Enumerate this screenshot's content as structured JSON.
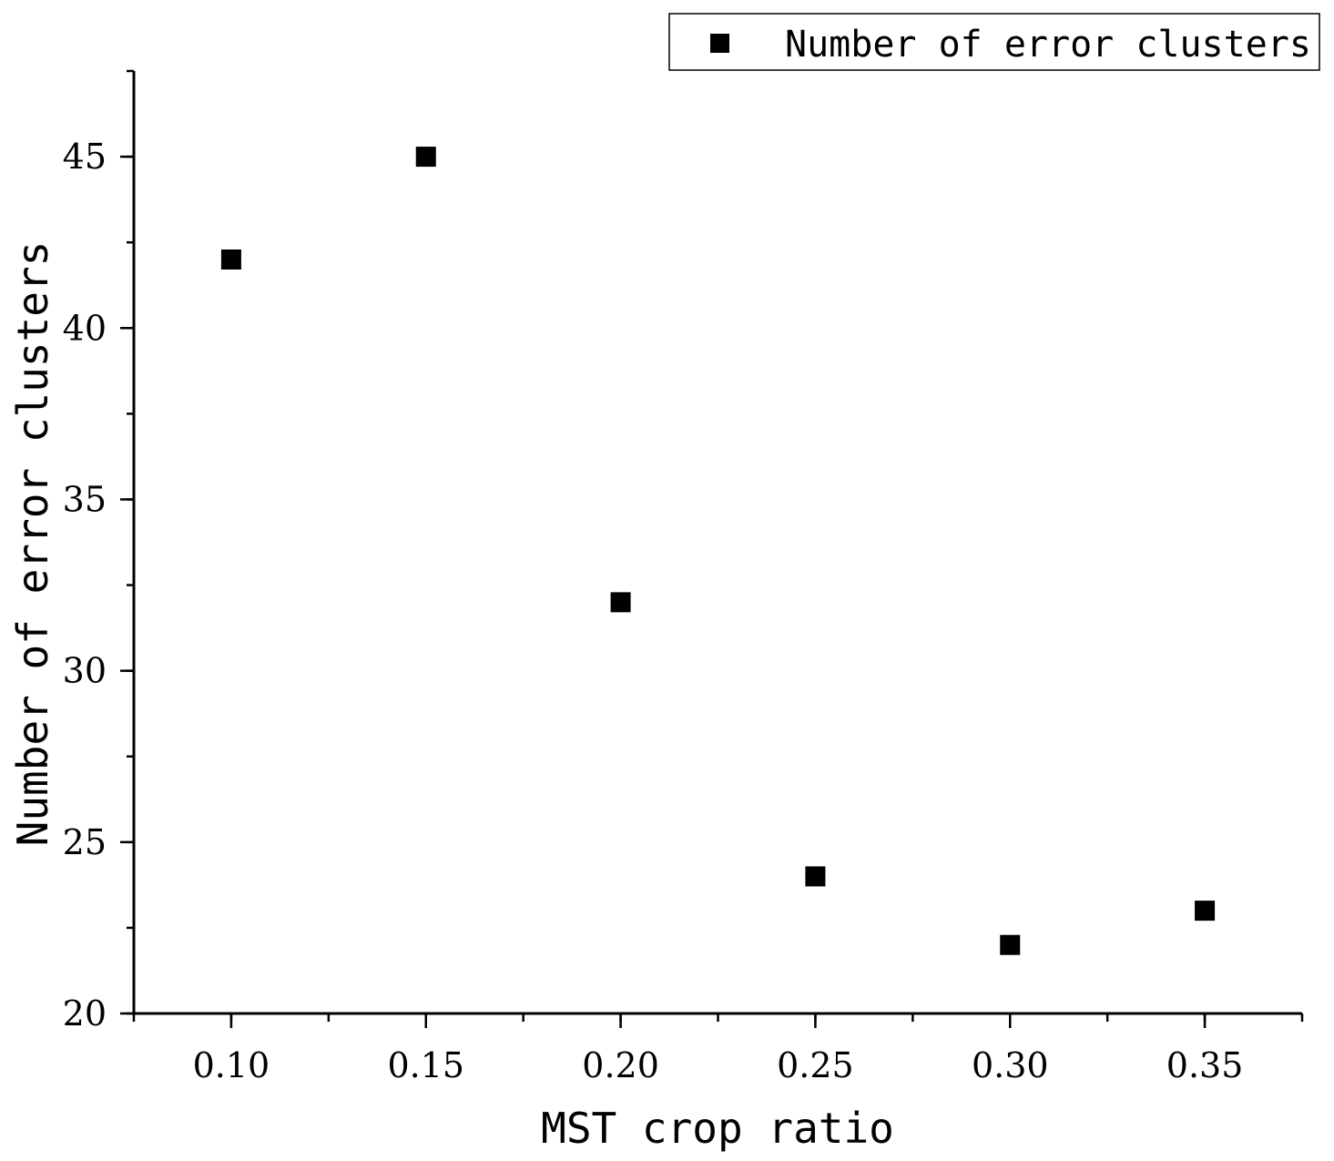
{
  "chart_data": {
    "type": "scatter",
    "title": "",
    "xlabel": "MST crop ratio",
    "ylabel": "Number of error clusters",
    "xlim": [
      0.075,
      0.375
    ],
    "ylim": [
      20,
      47.5
    ],
    "x_ticks": [
      "0.10",
      "0.15",
      "0.20",
      "0.25",
      "0.30",
      "0.35"
    ],
    "x_tick_values": [
      0.1,
      0.15,
      0.2,
      0.25,
      0.3,
      0.35
    ],
    "y_ticks": [
      "20",
      "25",
      "30",
      "35",
      "40",
      "45"
    ],
    "y_tick_values": [
      20,
      25,
      30,
      35,
      40,
      45
    ],
    "grid": false,
    "legend_position": "top-right",
    "series": [
      {
        "name": "Number of error clusters",
        "marker": "square",
        "color": "#000000",
        "x": [
          0.1,
          0.15,
          0.2,
          0.25,
          0.3,
          0.35
        ],
        "y": [
          42,
          45,
          32,
          24,
          22,
          23
        ]
      }
    ]
  }
}
